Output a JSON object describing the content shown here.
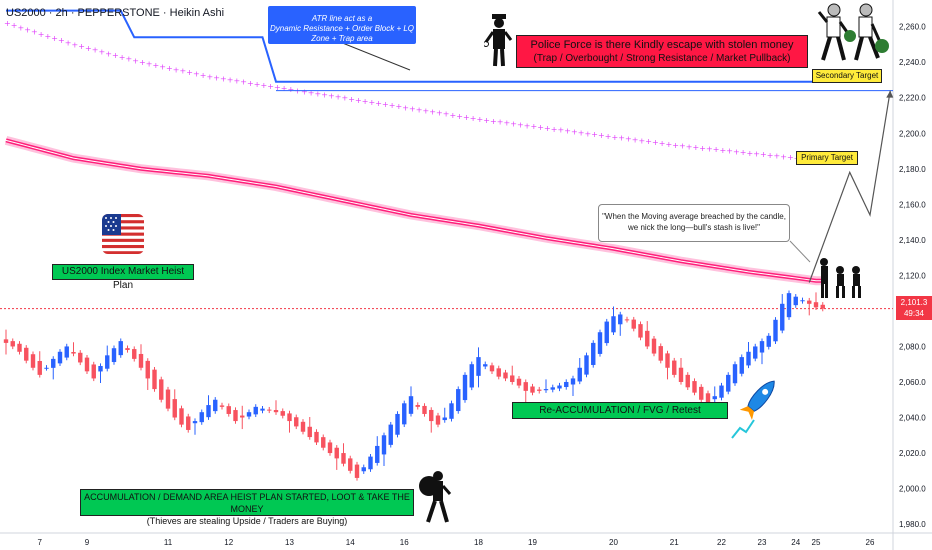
{
  "header": {
    "symbol_line": "US2000 · 2h · PEPPERSTONE · Heikin Ashi"
  },
  "annotations": {
    "atr_note_line1": "ATR line act as a",
    "atr_note_line2": "Dynamic Resistance + Order Block + LQ Zone + Trap area",
    "police_line1": "Police Force is there Kindly escape with stolen money",
    "police_line2": "(Trap / Overbought / Strong Resistance / Market Pullback)",
    "secondary_target": "Secondary Target",
    "primary_target": "Primary Target",
    "quote_line1": "\"When the Moving average breached by the candle,",
    "quote_line2": "we nick the long—bull's stash is live!\"",
    "plan_title": "US2000 Index Market Heist Plan",
    "reaccumulation": "Re-ACCUMULATION / FVG / Retest",
    "accumulation_line1": "ACCUMULATION / DEMAND AREA HEIST PLAN STARTED, LOOT & TAKE THE MONEY",
    "accumulation_line2": "(Thieves are stealing Upside / Traders are Buying)"
  },
  "price_tag": {
    "price": "2,101.3",
    "countdown": "49:34"
  },
  "colors": {
    "bull": "#2962ff",
    "bear": "#f7525f",
    "ma": "#ff1f7a",
    "magenta_dots": "#e040fb",
    "atr_line": "#2962ff",
    "label_green": "#00c853",
    "label_yellow": "#ffeb3b",
    "label_red": "#ff1744"
  },
  "icons": [
    "us-flag-icon",
    "police-officer-icon",
    "thieves-running-icon",
    "robber-with-bag-icon",
    "rocket-icon",
    "gang-icon"
  ],
  "chart_data": {
    "type": "candlestick",
    "chart_style": "Heikin Ashi",
    "symbol": "US2000",
    "interval": "2h",
    "source": "PEPPERSTONE",
    "ylim": [
      1975,
      2275
    ],
    "y_ticks": [
      1980,
      2000,
      2020,
      2040,
      2060,
      2080,
      2100,
      2120,
      2140,
      2160,
      2180,
      2200,
      2220,
      2240,
      2260
    ],
    "y_tick_labels": [
      "1,980.0",
      "2,000.0",
      "2,020.0",
      "2,040.0",
      "2,060.0",
      "2,080.0",
      "2,100.0",
      "2,120.0",
      "2,140.0",
      "2,160.0",
      "2,180.0",
      "2,200.0",
      "2,220.0",
      "2,240.0",
      "2,260.0"
    ],
    "x_tick_labels": [
      "7",
      "9",
      "11",
      "12",
      "13",
      "14",
      "16",
      "18",
      "19",
      "20",
      "21",
      "22",
      "23",
      "24",
      "25",
      "26"
    ],
    "x_tick_candle_index": [
      5,
      12,
      24,
      33,
      42,
      51,
      59,
      70,
      78,
      90,
      99,
      106,
      112,
      117,
      120,
      128
    ],
    "last_price": 2101.3,
    "closes": [
      2082,
      2080,
      2077,
      2072,
      2068,
      2064,
      2068,
      2073,
      2077,
      2080,
      2076,
      2071,
      2066,
      2062,
      2069,
      2075,
      2079,
      2083,
      2078,
      2073,
      2068,
      2062,
      2056,
      2050,
      2045,
      2040,
      2036,
      2033,
      2038,
      2043,
      2047,
      2050,
      2046,
      2042,
      2038,
      2040,
      2043,
      2046,
      2045,
      2044,
      2043,
      2041,
      2038,
      2035,
      2032,
      2029,
      2026,
      2023,
      2020,
      2017,
      2014,
      2010,
      2006,
      2012,
      2018,
      2024,
      2030,
      2036,
      2042,
      2048,
      2052,
      2046,
      2042,
      2038,
      2036,
      2040,
      2048,
      2056,
      2064,
      2070,
      2074,
      2070,
      2066,
      2063,
      2062,
      2060,
      2058,
      2055,
      2054,
      2055,
      2056,
      2057,
      2058,
      2060,
      2062,
      2068,
      2075,
      2082,
      2088,
      2094,
      2097,
      2098,
      2095,
      2090,
      2085,
      2080,
      2076,
      2072,
      2068,
      2064,
      2060,
      2057,
      2054,
      2050,
      2047,
      2052,
      2058,
      2064,
      2070,
      2074,
      2077,
      2080,
      2083,
      2086,
      2095,
      2104,
      2110,
      2108,
      2106,
      2104,
      2102,
      2101.3
    ],
    "moving_average": [
      [
        0,
        2196
      ],
      [
        10,
        2186
      ],
      [
        20,
        2180
      ],
      [
        30,
        2176
      ],
      [
        40,
        2170
      ],
      [
        50,
        2162
      ],
      [
        60,
        2154
      ],
      [
        70,
        2148
      ],
      [
        80,
        2141
      ],
      [
        90,
        2135
      ],
      [
        100,
        2128
      ],
      [
        110,
        2122
      ],
      [
        120,
        2117
      ]
    ],
    "magenta_dot_line": [
      [
        0,
        2262
      ],
      [
        10,
        2250
      ],
      [
        20,
        2240
      ],
      [
        30,
        2232
      ],
      [
        40,
        2226
      ],
      [
        50,
        2220
      ],
      [
        60,
        2214
      ],
      [
        70,
        2208
      ],
      [
        80,
        2203
      ],
      [
        90,
        2198
      ],
      [
        100,
        2193
      ],
      [
        110,
        2189
      ],
      [
        120,
        2185
      ]
    ],
    "atr_line": [
      [
        0,
        2269
      ],
      [
        17,
        2269
      ],
      [
        19,
        2254
      ],
      [
        38,
        2254
      ],
      [
        40,
        2229
      ],
      [
        121,
        2229
      ]
    ],
    "primary_target_level": 2180,
    "secondary_target_level": 2224,
    "projection_path": [
      [
        119,
        2116
      ],
      [
        125,
        2178
      ],
      [
        128,
        2154
      ],
      [
        131,
        2224
      ]
    ]
  }
}
